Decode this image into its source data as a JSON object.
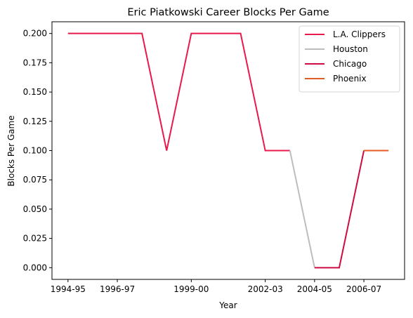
{
  "chart_data": {
    "type": "line",
    "title": "Eric Piatkowski Career Blocks Per Game",
    "xlabel": "Year",
    "ylabel": "Blocks Per Game",
    "x": [
      "1994-95",
      "1995-96",
      "1996-97",
      "1997-98",
      "1998-99",
      "1999-00",
      "2000-01",
      "2001-02",
      "2002-03",
      "2003-04",
      "2004-05",
      "2005-06",
      "2006-07",
      "2007-08"
    ],
    "xticks": [
      "1994-95",
      "1996-97",
      "1999-00",
      "2002-03",
      "2004-05",
      "2006-07"
    ],
    "yticks": [
      "0.000",
      "0.025",
      "0.050",
      "0.075",
      "0.100",
      "0.125",
      "0.150",
      "0.175",
      "0.200"
    ],
    "ylim": [
      -0.01,
      0.21
    ],
    "grid": false,
    "legend_position": "top-right",
    "series": [
      {
        "name": "L.A. Clippers",
        "color": "#e8194b",
        "points": [
          [
            0,
            0.2
          ],
          [
            1,
            0.2
          ],
          [
            2,
            0.2
          ],
          [
            3,
            0.2
          ],
          [
            4,
            0.1
          ],
          [
            5,
            0.2
          ],
          [
            6,
            0.2
          ],
          [
            7,
            0.2
          ],
          [
            8,
            0.1
          ],
          [
            9,
            0.1
          ]
        ]
      },
      {
        "name": "Houston",
        "color": "#bdbdbd",
        "points": [
          [
            9,
            0.1
          ],
          [
            10,
            0.0
          ]
        ]
      },
      {
        "name": "Chicago",
        "color": "#cc0c42",
        "points": [
          [
            10,
            0.0
          ],
          [
            11,
            0.0
          ],
          [
            12,
            0.1
          ]
        ]
      },
      {
        "name": "Phoenix",
        "color": "#e35a22",
        "points": [
          [
            12,
            0.1
          ],
          [
            13,
            0.1
          ]
        ]
      }
    ]
  }
}
